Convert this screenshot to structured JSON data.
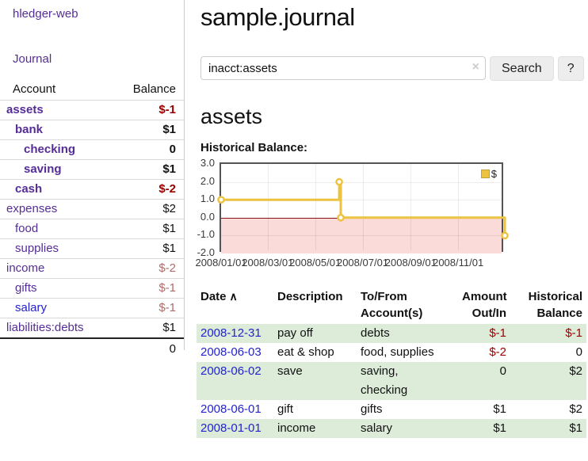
{
  "colors": {
    "purple_link": "#552d97",
    "blue_link": "#2323cc",
    "negative_red": "#990000",
    "muted_negative_red": "#b36a6a",
    "series_gold": "#edc240",
    "row_green": "#dcecd9",
    "negative_band_pink": "#fbdada",
    "zero_line_red": "#8d0e0e"
  },
  "sidebar": {
    "app_title": "hledger-web",
    "nav": {
      "journal_label": "Journal"
    },
    "accounts_table": {
      "headers": {
        "account": "Account",
        "balance": "Balance"
      },
      "rows": [
        {
          "name": "assets",
          "balance": "$-1",
          "depth": 1,
          "bold": true,
          "balance_color": "negative"
        },
        {
          "name": "bank",
          "balance": "$1",
          "depth": 2,
          "bold": true,
          "balance_color": "normal"
        },
        {
          "name": "checking",
          "balance": "0",
          "depth": 3,
          "bold": true,
          "balance_color": "normal"
        },
        {
          "name": "saving",
          "balance": "$1",
          "depth": 3,
          "bold": true,
          "balance_color": "normal"
        },
        {
          "name": "cash",
          "balance": "$-2",
          "depth": 2,
          "bold": true,
          "balance_color": "negative"
        },
        {
          "name": "expenses",
          "balance": "$2",
          "depth": 1,
          "bold": false,
          "balance_color": "normal"
        },
        {
          "name": "food",
          "balance": "$1",
          "depth": 2,
          "bold": false,
          "balance_color": "normal"
        },
        {
          "name": "supplies",
          "balance": "$1",
          "depth": 2,
          "bold": false,
          "balance_color": "normal"
        },
        {
          "name": "income",
          "balance": "$-2",
          "depth": 1,
          "bold": false,
          "balance_color": "negative-muted"
        },
        {
          "name": "gifts",
          "balance": "$-1",
          "depth": 2,
          "bold": false,
          "balance_color": "negative-muted"
        },
        {
          "name": "salary",
          "balance": "$-1",
          "depth": 2,
          "bold": false,
          "balance_color": "negative-muted",
          "link_color": "blue"
        },
        {
          "name": "liabilities:debts",
          "balance": "$1",
          "depth": 1,
          "bold": false,
          "balance_color": "normal"
        }
      ],
      "total": "0"
    }
  },
  "main": {
    "title": "sample.journal",
    "search": {
      "value": "inacct:assets",
      "clear_icon": "×",
      "search_button_label": "Search",
      "help_button_label": "?"
    },
    "account_heading": "assets",
    "chart_section_label": "Historical Balance:"
  },
  "chart_data": {
    "type": "line",
    "title": "Historical Balance",
    "step": true,
    "x_range": [
      "2008-01-01",
      "2008-12-31"
    ],
    "ylim": [
      -2,
      3
    ],
    "yticks": [
      {
        "label": "3.0",
        "value": 3
      },
      {
        "label": "2.0",
        "value": 2
      },
      {
        "label": "1.0",
        "value": 1
      },
      {
        "label": "0.0",
        "value": 0
      },
      {
        "label": "-1.0",
        "value": -1
      },
      {
        "label": "-2.0",
        "value": -2
      }
    ],
    "xticks": [
      {
        "label": "2008/01/01",
        "date": "2008-01-01"
      },
      {
        "label": "2008/03/01",
        "date": "2008-03-01"
      },
      {
        "label": "2008/05/01",
        "date": "2008-05-01"
      },
      {
        "label": "2008/07/01",
        "date": "2008-07-01"
      },
      {
        "label": "2008/09/01",
        "date": "2008-09-01"
      },
      {
        "label": "2008/11/01",
        "date": "2008-11-01"
      }
    ],
    "series": [
      {
        "name": "$",
        "color": "#edc240",
        "points": [
          {
            "date": "2008-01-01",
            "value": 1
          },
          {
            "date": "2008-06-01",
            "value": 2
          },
          {
            "date": "2008-06-03",
            "value": 0
          },
          {
            "date": "2008-12-31",
            "value": -1
          }
        ]
      }
    ],
    "negative_region": {
      "from": 0,
      "to": -2,
      "color": "#fbdada"
    },
    "legend": {
      "label": "$",
      "position": "top-right"
    },
    "grid": true
  },
  "register_table": {
    "headers": {
      "date": "Date",
      "sort_icon": "∧",
      "description": "Description",
      "accounts": "To/From\nAccount(s)",
      "amount": "Amount\nOut/In",
      "balance": "Historical\nBalance"
    },
    "rows": [
      {
        "date": "2008-12-31",
        "description": "pay off",
        "accounts": "debts",
        "amount": "$-1",
        "balance": "$-1"
      },
      {
        "date": "2008-06-03",
        "description": "eat & shop",
        "accounts": "food, supplies",
        "amount": "$-2",
        "balance": "0"
      },
      {
        "date": "2008-06-02",
        "description": "save",
        "accounts": "saving,\nchecking",
        "amount": "0",
        "balance": "$2"
      },
      {
        "date": "2008-06-01",
        "description": "gift",
        "accounts": "gifts",
        "amount": "$1",
        "balance": "$2"
      },
      {
        "date": "2008-01-01",
        "description": "income",
        "accounts": "salary",
        "amount": "$1",
        "balance": "$1"
      }
    ]
  }
}
